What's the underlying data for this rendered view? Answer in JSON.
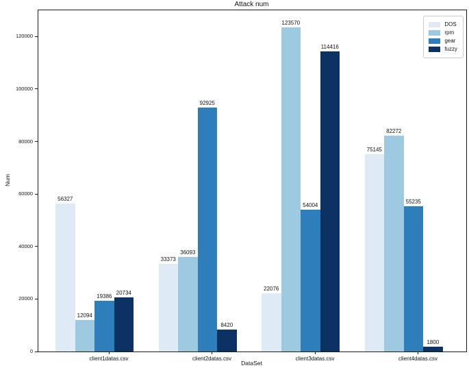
{
  "chart_data": {
    "type": "bar",
    "title": "Attack num",
    "xlabel": "DataSet",
    "ylabel": "Num",
    "categories": [
      "client1datas.csv",
      "client2datas.csv",
      "client3datas.csv",
      "client4datas.csv"
    ],
    "series": [
      {
        "name": "DOS",
        "color": "#deebf7",
        "values": [
          56327,
          33373,
          22076,
          75145
        ]
      },
      {
        "name": "rpm",
        "color": "#9ecae1",
        "values": [
          12094,
          36093,
          123570,
          82272
        ]
      },
      {
        "name": "gear",
        "color": "#2e7ebc",
        "values": [
          19386,
          92925,
          54004,
          55235
        ]
      },
      {
        "name": "fuzzy",
        "color": "#0c3263",
        "values": [
          20734,
          8420,
          114416,
          1800
        ]
      }
    ],
    "ylim": [
      0,
      130000
    ],
    "yticks": [
      0,
      20000,
      40000,
      60000,
      80000,
      100000,
      120000
    ],
    "legend_position": "upper right",
    "grid": false,
    "bar_value_labels": true
  }
}
